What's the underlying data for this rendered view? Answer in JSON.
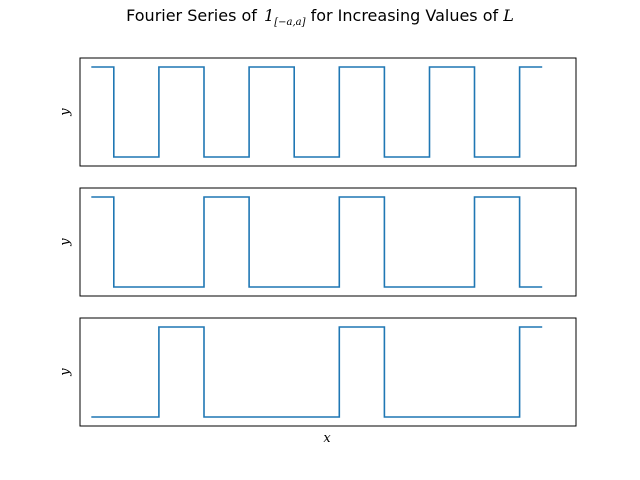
{
  "chart_data": {
    "title": {
      "prefix": "Fourier Series of ",
      "symbol": "1",
      "subscript": "[−a,a]",
      "suffix": " for Increasing Values of ",
      "variable": "L"
    },
    "xlabel": "x",
    "color": "#1f77b4",
    "subplots": [
      {
        "type": "line",
        "ylabel": "y",
        "xlim": [
          -0.5,
          21.5
        ],
        "ylim": [
          -0.1,
          1.1
        ],
        "transitions": [
          1,
          3,
          5,
          7,
          9,
          11,
          13,
          15,
          17,
          19
        ],
        "start_value": 1
      },
      {
        "type": "line",
        "ylabel": "y",
        "xlim": [
          -0.5,
          21.5
        ],
        "ylim": [
          -0.1,
          1.1
        ],
        "transitions": [
          1,
          5,
          7,
          11,
          13,
          17,
          19
        ],
        "start_value": 1
      },
      {
        "type": "line",
        "ylabel": "y",
        "xlim": [
          -0.5,
          21.5
        ],
        "ylim": [
          -0.1,
          1.1
        ],
        "transitions": [
          3,
          5,
          11,
          13,
          19
        ],
        "start_value": 0
      }
    ],
    "x_range": [
      0,
      20
    ]
  }
}
